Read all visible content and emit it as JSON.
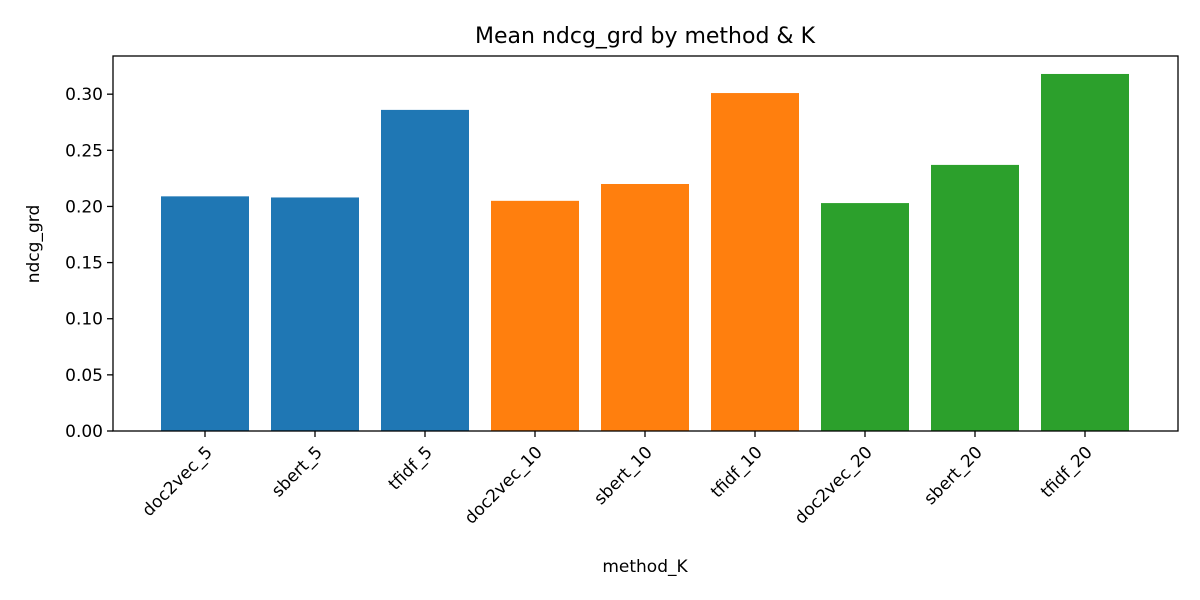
{
  "chart_data": {
    "type": "bar",
    "title": "Mean ndcg_grd by method & K",
    "xlabel": "method_K",
    "ylabel": "ndcg_grd",
    "categories": [
      "doc2vec_5",
      "sbert_5",
      "tfidf_5",
      "doc2vec_10",
      "sbert_10",
      "tfidf_10",
      "doc2vec_20",
      "sbert_20",
      "tfidf_20"
    ],
    "values": [
      0.209,
      0.208,
      0.286,
      0.205,
      0.22,
      0.301,
      0.203,
      0.237,
      0.318
    ],
    "bar_colors": [
      "#1f77b4",
      "#1f77b4",
      "#1f77b4",
      "#ff7f0e",
      "#ff7f0e",
      "#ff7f0e",
      "#2ca02c",
      "#2ca02c",
      "#2ca02c"
    ],
    "ylim": [
      0,
      0.334
    ],
    "yticks": [
      0.0,
      0.05,
      0.1,
      0.15,
      0.2,
      0.25,
      0.3
    ],
    "ytick_labels": [
      "0.00",
      "0.05",
      "0.10",
      "0.15",
      "0.20",
      "0.25",
      "0.30"
    ],
    "grid": false,
    "legend": "none"
  }
}
